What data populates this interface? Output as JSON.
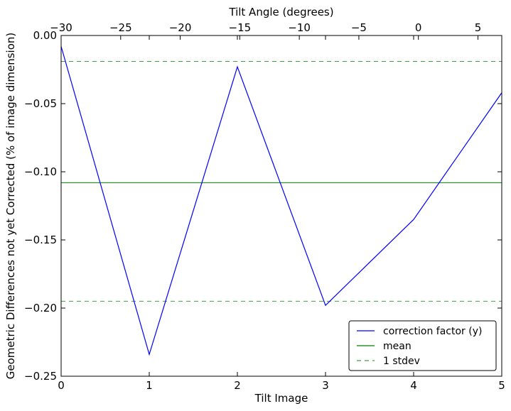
{
  "chart_data": {
    "type": "line",
    "xlabel": "Tilt Image",
    "ylabel": "Geometric Differences not yet Corrected (% of image dimension)",
    "top_axis_label": "Tilt Angle (degrees)",
    "xlim": [
      0,
      5
    ],
    "ylim": [
      -0.25,
      0.0
    ],
    "x_ticks": [
      "0",
      "1",
      "2",
      "3",
      "4",
      "5"
    ],
    "y_ticks": [
      "0.00",
      "−0.05",
      "−0.10",
      "−0.15",
      "−0.20",
      "−0.25"
    ],
    "y_tick_values": [
      0.0,
      -0.05,
      -0.1,
      -0.15,
      -0.2,
      -0.25
    ],
    "top_x_lim": [
      -30,
      7
    ],
    "top_ticks": [
      "−30",
      "−25",
      "−20",
      "−15",
      "−10",
      "−5",
      "0",
      "5"
    ],
    "top_tick_values": [
      -30,
      -25,
      -20,
      -15,
      -10,
      -5,
      0,
      5
    ],
    "x": [
      0,
      1,
      2,
      3,
      4,
      5
    ],
    "series": [
      {
        "name": "correction factor (y)",
        "values": [
          -0.008,
          -0.234,
          -0.023,
          -0.198,
          -0.135,
          -0.042
        ],
        "color": "#0000ff",
        "style": "solid"
      }
    ],
    "mean": {
      "name": "mean",
      "value": -0.108,
      "color": "#008000",
      "style": "solid"
    },
    "stdev": {
      "name": "1 stdev",
      "values": [
        -0.019,
        -0.195
      ],
      "color": "#008000",
      "style": "dashed"
    },
    "legend_position": "lower-right",
    "grid": false
  }
}
